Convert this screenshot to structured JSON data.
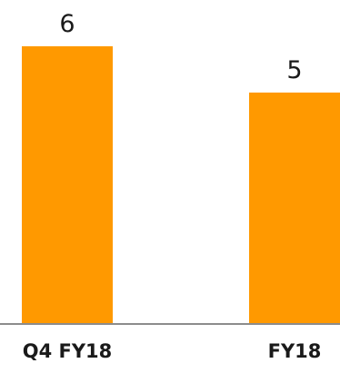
{
  "chart_data": {
    "type": "bar",
    "categories": [
      "Q4 FY18",
      "FY18"
    ],
    "values": [
      6,
      5
    ],
    "data_labels": [
      "6",
      "5"
    ],
    "title": "",
    "xlabel": "",
    "ylabel": "",
    "grid": false,
    "legend": "none",
    "bar_color": "#FF9900",
    "axis_color": "#8c8c8c"
  }
}
